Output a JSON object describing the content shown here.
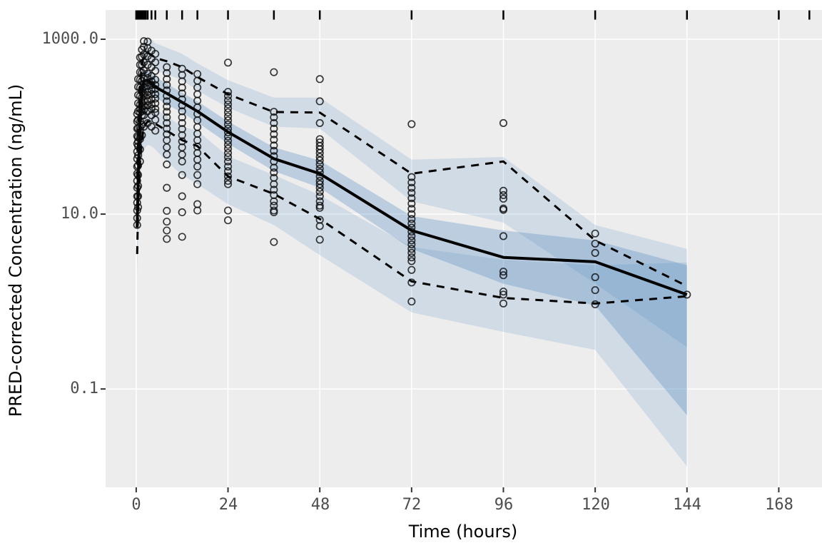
{
  "figure": {
    "x_title": "Time (hours)",
    "y_title": "PRED-corrected Concentration (ng/mL)",
    "x_tick_labels": [
      "0",
      "24",
      "48",
      "72",
      "96",
      "120",
      "144",
      "168"
    ],
    "y_tick_labels": [
      "1000.0",
      "10.0",
      "0.1"
    ],
    "colors": {
      "panel_background": "#EDEDED",
      "gridline": "#FFFFFF",
      "ribbon_blue": "#4a85bc",
      "line_black": "#000000",
      "tick_text": "#4d4d4d"
    }
  },
  "chart_data": {
    "type": "line",
    "title": "",
    "xlabel": "Time (hours)",
    "ylabel": "PRED-corrected Concentration (ng/mL)",
    "x_ticks": [
      0,
      24,
      48,
      72,
      96,
      120,
      144,
      168
    ],
    "y_ticks": [
      1000.0,
      10.0,
      0.1
    ],
    "y_scale": "log10",
    "xlim": [
      -8,
      179.3
    ],
    "ylim": [
      0.0075,
      2160
    ],
    "legend": "none",
    "grid": "major-only",
    "bin_times": [
      0.25,
      0.5,
      1,
      1.5,
      2,
      3,
      4,
      5,
      8,
      12,
      16,
      24,
      36,
      48,
      72,
      96,
      120,
      144
    ],
    "series": [
      {
        "name": "median",
        "style": "solid",
        "values": [
          7,
          25,
          110,
          250,
          330,
          340,
          315,
          285,
          240,
          190,
          150,
          87,
          43,
          29,
          6.5,
          3.2,
          2.85,
          1.2
        ]
      },
      {
        "name": "p95",
        "style": "dashed",
        "values": [
          25,
          80,
          300,
          520,
          650,
          700,
          660,
          610,
          560,
          480,
          370,
          235,
          147,
          145,
          29,
          40,
          5.0,
          1.5
        ]
      },
      {
        "name": "p5",
        "style": "dashed",
        "values": [
          3.5,
          12,
          40,
          70,
          100,
          115,
          113,
          108,
          90,
          70,
          60,
          27,
          17,
          8.8,
          1.7,
          1.1,
          0.95,
          1.15
        ]
      }
    ],
    "ribbons": [
      {
        "name": "p95_ci",
        "opacity": 0.17,
        "lo": [
          15,
          45,
          180,
          350,
          470,
          510,
          480,
          440,
          400,
          340,
          260,
          165,
          100,
          95,
          14,
          8,
          1.6,
          0.3
        ],
        "hi": [
          60,
          150,
          520,
          800,
          950,
          1050,
          1000,
          900,
          800,
          680,
          530,
          340,
          215,
          215,
          42,
          45,
          7.5,
          4.0
        ]
      },
      {
        "name": "p5_ci",
        "opacity": 0.17,
        "lo": [
          2,
          6,
          20,
          40,
          55,
          62,
          60,
          55,
          40,
          28,
          22,
          13,
          7.5,
          3.4,
          0.75,
          0.45,
          0.28,
          0.013
        ],
        "hi": [
          8,
          25,
          75,
          130,
          165,
          180,
          172,
          160,
          132,
          100,
          90,
          46,
          28,
          16.5,
          4.2,
          3.0,
          2.6,
          2.8
        ]
      },
      {
        "name": "median_ci",
        "opacity": 0.3,
        "lo": [
          4,
          15,
          70,
          170,
          240,
          255,
          235,
          215,
          180,
          145,
          112,
          64,
          31,
          20,
          4.0,
          1.6,
          0.9,
          0.05
        ],
        "hi": [
          12,
          40,
          160,
          330,
          430,
          445,
          410,
          370,
          310,
          245,
          195,
          115,
          58,
          41,
          9.5,
          6.5,
          5.0,
          2.6
        ]
      }
    ],
    "observations": [
      {
        "t": 0.25,
        "values": [
          7.5,
          9,
          11,
          13.5,
          16,
          20,
          24,
          29,
          35,
          43,
          52,
          64,
          78,
          95,
          115,
          140
        ]
      },
      {
        "t": 0.5,
        "values": [
          12,
          16,
          21,
          28,
          36,
          47,
          60,
          76,
          96,
          120,
          150,
          185,
          230,
          285,
          350,
          68
        ]
      },
      {
        "t": 1,
        "values": [
          40,
          55,
          72,
          92,
          115,
          145,
          180,
          225,
          280,
          345,
          420,
          510,
          620,
          160,
          98,
          76
        ]
      },
      {
        "t": 1.5,
        "values": [
          80,
          105,
          135,
          170,
          215,
          270,
          335,
          415,
          510,
          630,
          760,
          250,
          190,
          150
        ]
      },
      {
        "t": 2,
        "values": [
          100,
          135,
          175,
          225,
          285,
          355,
          440,
          545,
          670,
          820,
          950,
          310,
          240,
          195,
          155
        ]
      },
      {
        "t": 3,
        "values": [
          110,
          150,
          195,
          250,
          320,
          405,
          510,
          640,
          790,
          940,
          290,
          360,
          230,
          175
        ]
      },
      {
        "t": 4,
        "values": [
          100,
          135,
          180,
          235,
          300,
          380,
          480,
          600,
          740,
          265,
          330,
          205,
          160
        ]
      },
      {
        "t": 5,
        "values": [
          90,
          120,
          160,
          210,
          270,
          345,
          435,
          545,
          680,
          235,
          300,
          185,
          145
        ]
      },
      {
        "t": 8,
        "values": [
          480,
          410,
          350,
          300,
          260,
          225,
          195,
          170,
          148,
          128,
          110,
          95,
          82,
          70,
          58,
          48,
          37,
          20,
          10.9,
          8.2,
          6.5,
          5.2
        ]
      },
      {
        "t": 12,
        "values": [
          460,
          390,
          330,
          280,
          240,
          205,
          175,
          150,
          128,
          110,
          94,
          80,
          68,
          58,
          48,
          40,
          28,
          16,
          10.5,
          5.5
        ]
      },
      {
        "t": 16,
        "values": [
          400,
          335,
          280,
          235,
          198,
          166,
          140,
          118,
          99,
          83,
          70,
          59,
          50,
          42,
          35,
          28,
          22,
          13,
          11
        ]
      },
      {
        "t": 24,
        "values": [
          540,
          250,
          225,
          200,
          180,
          162,
          146,
          131,
          118,
          106,
          95,
          86,
          77,
          69,
          62,
          56,
          50,
          45,
          40,
          35,
          31,
          27,
          24,
          22,
          11,
          8.5
        ]
      },
      {
        "t": 36,
        "values": [
          420,
          148,
          128,
          110,
          95,
          82,
          71,
          61,
          53,
          46,
          40,
          34,
          30,
          26,
          22,
          19,
          16.5,
          14,
          12.5,
          11,
          10.5,
          4.8
        ]
      },
      {
        "t": 48,
        "values": [
          350,
          195,
          110,
          72,
          66,
          60,
          55,
          50,
          45,
          41,
          37,
          33,
          30,
          27,
          24,
          22,
          20,
          18,
          16,
          14,
          12.5,
          11.8,
          8.6,
          7.3,
          5.1
        ]
      },
      {
        "t": 72,
        "values": [
          107,
          26.5,
          23,
          20,
          17.5,
          15.2,
          13.2,
          11.5,
          10,
          8.8,
          7.8,
          7,
          6.3,
          5.6,
          5,
          4.5,
          4,
          3.6,
          3.2,
          2.9,
          2.3,
          1.65,
          1.0
        ]
      },
      {
        "t": 96,
        "values": [
          110,
          18.5,
          16.5,
          15,
          11.6,
          11.2,
          5.6,
          2.2,
          2.0,
          1.3,
          1.2,
          0.95
        ]
      },
      {
        "t": 120,
        "values": [
          6.0,
          4.6,
          3.6,
          1.9,
          1.35,
          0.93
        ]
      },
      {
        "t": 144,
        "values": [
          1.2
        ]
      }
    ],
    "rug_times": [
      0,
      0.2,
      0.35,
      0.5,
      0.65,
      0.8,
      1,
      1.2,
      1.4,
      1.6,
      1.8,
      2,
      2.2,
      2.5,
      3,
      4,
      5,
      8,
      12,
      16,
      24,
      36,
      48,
      72,
      96,
      120,
      144,
      168,
      176
    ]
  }
}
